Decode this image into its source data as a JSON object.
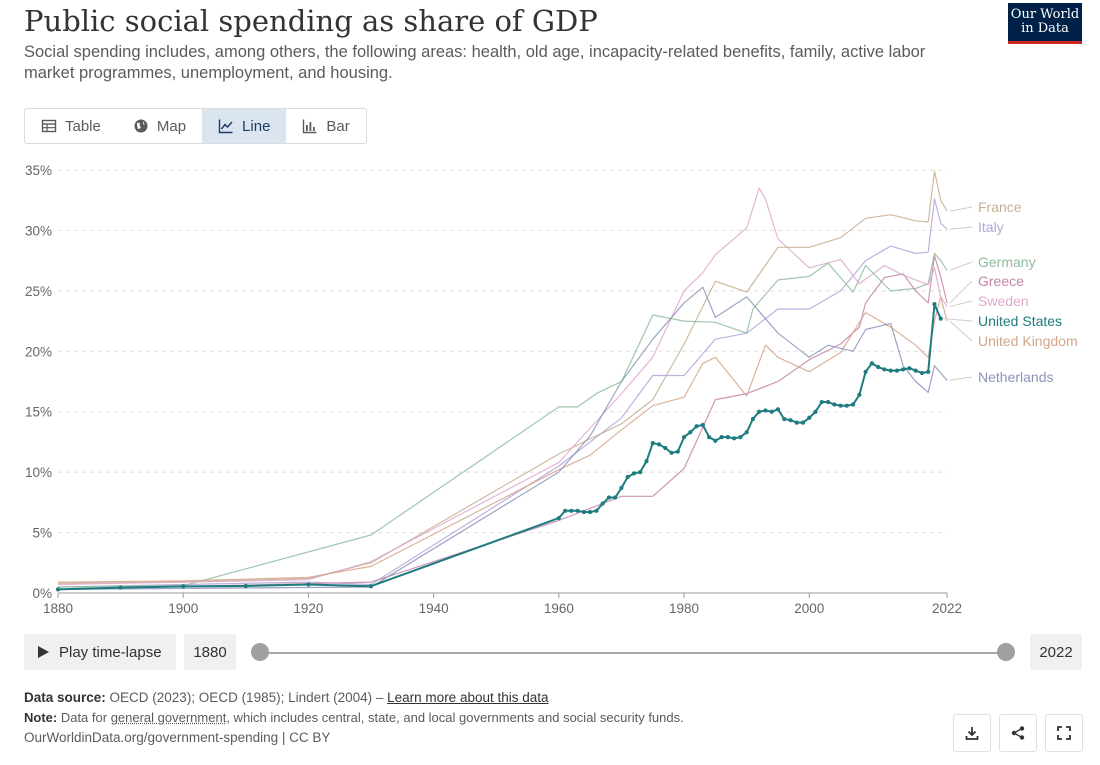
{
  "header": {
    "title": "Public social spending as share of GDP",
    "subtitle": "Social spending includes, among others, the following areas: health, old age, incapacity-related benefits, family, active labor market programmes, unemployment, and housing.",
    "logo_line1": "Our World",
    "logo_line2": "in Data"
  },
  "tabs": [
    {
      "label": "Table",
      "icon": "table-icon"
    },
    {
      "label": "Map",
      "icon": "globe-icon"
    },
    {
      "label": "Line",
      "icon": "line-chart-icon",
      "active": true
    },
    {
      "label": "Bar",
      "icon": "bar-chart-icon"
    }
  ],
  "chart_data": {
    "type": "line",
    "title": "Public social spending as share of GDP",
    "ylim": [
      0,
      35
    ],
    "xlim": [
      1880,
      2022
    ],
    "y_ticks": [
      "0%",
      "5%",
      "10%",
      "15%",
      "20%",
      "25%",
      "30%",
      "35%"
    ],
    "x_ticks": [
      "1880",
      "1900",
      "1920",
      "1940",
      "1960",
      "1980",
      "2000",
      "2022"
    ],
    "grid": "horizontal dashed",
    "legend": "right, labels at line ends",
    "series": [
      {
        "name": "France",
        "color": "#c8ad91",
        "points": [
          [
            1880,
            0.8
          ],
          [
            1900,
            0.9
          ],
          [
            1920,
            1.2
          ],
          [
            1930,
            2.5
          ],
          [
            1960,
            11.5
          ],
          [
            1970,
            14
          ],
          [
            1975,
            16
          ],
          [
            1980,
            20.6
          ],
          [
            1985,
            25.8
          ],
          [
            1990,
            24.9
          ],
          [
            1995,
            28.6
          ],
          [
            2000,
            28.6
          ],
          [
            2005,
            29.4
          ],
          [
            2009,
            31
          ],
          [
            2013,
            31.3
          ],
          [
            2017,
            30.8
          ],
          [
            2019,
            30.7
          ],
          [
            2020,
            34.9
          ],
          [
            2021,
            32.5
          ],
          [
            2022,
            31.6
          ]
        ]
      },
      {
        "name": "Italy",
        "color": "#b2a4d7",
        "points": [
          [
            1880,
            0.5
          ],
          [
            1900,
            0.7
          ],
          [
            1920,
            0.9
          ],
          [
            1930,
            0.7
          ],
          [
            1960,
            10.5
          ],
          [
            1970,
            14.5
          ],
          [
            1975,
            18
          ],
          [
            1980,
            18
          ],
          [
            1985,
            21
          ],
          [
            1990,
            21.5
          ],
          [
            1995,
            23.5
          ],
          [
            2000,
            23.5
          ],
          [
            2005,
            25
          ],
          [
            2009,
            27.5
          ],
          [
            2013,
            28.7
          ],
          [
            2017,
            28.1
          ],
          [
            2019,
            28.2
          ],
          [
            2020,
            32.6
          ],
          [
            2021,
            30.6
          ],
          [
            2022,
            30.1
          ]
        ]
      },
      {
        "name": "Germany",
        "color": "#8dbd9e",
        "points": [
          [
            1880,
            0.5
          ],
          [
            1900,
            0.6
          ],
          [
            1930,
            4.8
          ],
          [
            1960,
            15.4
          ],
          [
            1963,
            15.4
          ],
          [
            1966,
            16.5
          ],
          [
            1970,
            17.5
          ],
          [
            1975,
            23
          ],
          [
            1980,
            22.5
          ],
          [
            1985,
            22.4
          ],
          [
            1990,
            21.5
          ],
          [
            1991,
            23.5
          ],
          [
            1995,
            25.9
          ],
          [
            2000,
            26.2
          ],
          [
            2003,
            27.3
          ],
          [
            2007,
            24.9
          ],
          [
            2009,
            27.1
          ],
          [
            2013,
            25
          ],
          [
            2017,
            25.2
          ],
          [
            2019,
            25.6
          ],
          [
            2020,
            28.1
          ],
          [
            2021,
            27.5
          ],
          [
            2022,
            26.7
          ]
        ]
      },
      {
        "name": "Greece",
        "color": "#c585a8",
        "points": [
          [
            1880,
            0.3
          ],
          [
            1930,
            0.9
          ],
          [
            1960,
            6
          ],
          [
            1970,
            8
          ],
          [
            1975,
            8
          ],
          [
            1980,
            10.3
          ],
          [
            1985,
            16
          ],
          [
            1990,
            16.5
          ],
          [
            1995,
            17.5
          ],
          [
            2000,
            19.3
          ],
          [
            2005,
            20.6
          ],
          [
            2008,
            22
          ],
          [
            2009,
            24
          ],
          [
            2012,
            26.1
          ],
          [
            2015,
            26.4
          ],
          [
            2017,
            25
          ],
          [
            2019,
            24
          ],
          [
            2020,
            27.9
          ],
          [
            2021,
            26.2
          ],
          [
            2022,
            24
          ]
        ]
      },
      {
        "name": "Sweden",
        "color": "#dca9ce",
        "points": [
          [
            1880,
            0.7
          ],
          [
            1920,
            1.1
          ],
          [
            1930,
            2.6
          ],
          [
            1960,
            10.8
          ],
          [
            1970,
            16.5
          ],
          [
            1975,
            19.5
          ],
          [
            1980,
            25
          ],
          [
            1983,
            26.5
          ],
          [
            1985,
            28
          ],
          [
            1990,
            30.2
          ],
          [
            1992,
            33.5
          ],
          [
            1993,
            32.6
          ],
          [
            1995,
            29.3
          ],
          [
            2000,
            26.9
          ],
          [
            2005,
            27.6
          ],
          [
            2008,
            25.6
          ],
          [
            2012,
            27.1
          ],
          [
            2015,
            26.3
          ],
          [
            2019,
            25.5
          ],
          [
            2020,
            26.9
          ],
          [
            2021,
            24.5
          ],
          [
            2022,
            23.7
          ]
        ]
      },
      {
        "name": "United States",
        "color": "#1e7b7f",
        "points": [
          [
            1880,
            0.3
          ],
          [
            1890,
            0.45
          ],
          [
            1900,
            0.55
          ],
          [
            1910,
            0.58
          ],
          [
            1920,
            0.7
          ],
          [
            1930,
            0.56
          ],
          [
            1960,
            6.2
          ],
          [
            1961,
            6.8
          ],
          [
            1962,
            6.8
          ],
          [
            1963,
            6.8
          ],
          [
            1964,
            6.7
          ],
          [
            1965,
            6.7
          ],
          [
            1966,
            6.8
          ],
          [
            1967,
            7.4
          ],
          [
            1968,
            7.9
          ],
          [
            1969,
            7.9
          ],
          [
            1970,
            8.7
          ],
          [
            1971,
            9.6
          ],
          [
            1972,
            9.9
          ],
          [
            1973,
            10
          ],
          [
            1974,
            10.9
          ],
          [
            1975,
            12.4
          ],
          [
            1976,
            12.3
          ],
          [
            1977,
            12
          ],
          [
            1978,
            11.6
          ],
          [
            1979,
            11.7
          ],
          [
            1980,
            12.9
          ],
          [
            1981,
            13.3
          ],
          [
            1982,
            13.8
          ],
          [
            1983,
            13.9
          ],
          [
            1984,
            12.9
          ],
          [
            1985,
            12.6
          ],
          [
            1986,
            12.9
          ],
          [
            1987,
            12.9
          ],
          [
            1988,
            12.8
          ],
          [
            1989,
            12.9
          ],
          [
            1990,
            13.3
          ],
          [
            1991,
            14.4
          ],
          [
            1992,
            15
          ],
          [
            1993,
            15.1
          ],
          [
            1994,
            15
          ],
          [
            1995,
            15.2
          ],
          [
            1996,
            14.4
          ],
          [
            1997,
            14.3
          ],
          [
            1998,
            14.1
          ],
          [
            1999,
            14.1
          ],
          [
            2000,
            14.5
          ],
          [
            2001,
            15
          ],
          [
            2002,
            15.8
          ],
          [
            2003,
            15.8
          ],
          [
            2004,
            15.6
          ],
          [
            2005,
            15.5
          ],
          [
            2006,
            15.5
          ],
          [
            2007,
            15.6
          ],
          [
            2008,
            16.4
          ],
          [
            2009,
            18.3
          ],
          [
            2010,
            19
          ],
          [
            2011,
            18.7
          ],
          [
            2012,
            18.5
          ],
          [
            2013,
            18.4
          ],
          [
            2014,
            18.4
          ],
          [
            2015,
            18.5
          ],
          [
            2016,
            18.6
          ],
          [
            2017,
            18.4
          ],
          [
            2018,
            18.2
          ],
          [
            2019,
            18.3
          ],
          [
            2020,
            23.9
          ],
          [
            2021,
            22.7
          ]
        ]
      },
      {
        "name": "United Kingdom",
        "color": "#d3a58a",
        "points": [
          [
            1880,
            0.9
          ],
          [
            1900,
            1
          ],
          [
            1920,
            1.3
          ],
          [
            1930,
            2.2
          ],
          [
            1960,
            10.2
          ],
          [
            1965,
            11.4
          ],
          [
            1970,
            13.5
          ],
          [
            1975,
            15.5
          ],
          [
            1980,
            16.2
          ],
          [
            1983,
            19
          ],
          [
            1985,
            19.5
          ],
          [
            1990,
            16.3
          ],
          [
            1993,
            20.5
          ],
          [
            1995,
            19.5
          ],
          [
            2000,
            18.3
          ],
          [
            2005,
            19.9
          ],
          [
            2009,
            23.2
          ],
          [
            2013,
            22
          ],
          [
            2017,
            20.5
          ],
          [
            2019,
            19.5
          ],
          [
            2020,
            22.5
          ],
          [
            2021,
            24.5
          ],
          [
            2022,
            22.5
          ]
        ]
      },
      {
        "name": "Netherlands",
        "color": "#8a94b8",
        "points": [
          [
            1880,
            0.3
          ],
          [
            1930,
            0.5
          ],
          [
            1960,
            10
          ],
          [
            1965,
            13
          ],
          [
            1970,
            17.5
          ],
          [
            1975,
            21
          ],
          [
            1980,
            24
          ],
          [
            1983,
            25.3
          ],
          [
            1985,
            22.8
          ],
          [
            1990,
            24.5
          ],
          [
            1995,
            21.5
          ],
          [
            2000,
            19.5
          ],
          [
            2003,
            20.5
          ],
          [
            2007,
            20
          ],
          [
            2009,
            21.8
          ],
          [
            2013,
            22.3
          ],
          [
            2015,
            18.8
          ],
          [
            2017,
            17.5
          ],
          [
            2019,
            16.6
          ],
          [
            2020,
            18.8
          ],
          [
            2021,
            18.2
          ],
          [
            2022,
            17.6
          ]
        ]
      }
    ]
  },
  "controls": {
    "play_label": "Play time-lapse",
    "start_year": "1880",
    "end_year": "2022"
  },
  "footer": {
    "source_label": "Data source:",
    "source_text": " OECD (2023); OECD (1985); Lindert (2004) – ",
    "source_link": "Learn more about this data",
    "note_label": "Note:",
    "note_text_1": " Data for ",
    "note_term": "general government",
    "note_text_2": ", which includes central, state, and local governments and social security funds.",
    "url_line": "OurWorldinData.org/government-spending | CC BY"
  },
  "buttons": [
    {
      "name": "download-button",
      "icon": "download-icon"
    },
    {
      "name": "share-button",
      "icon": "share-icon"
    },
    {
      "name": "fullscreen-button",
      "icon": "fullscreen-icon"
    }
  ]
}
